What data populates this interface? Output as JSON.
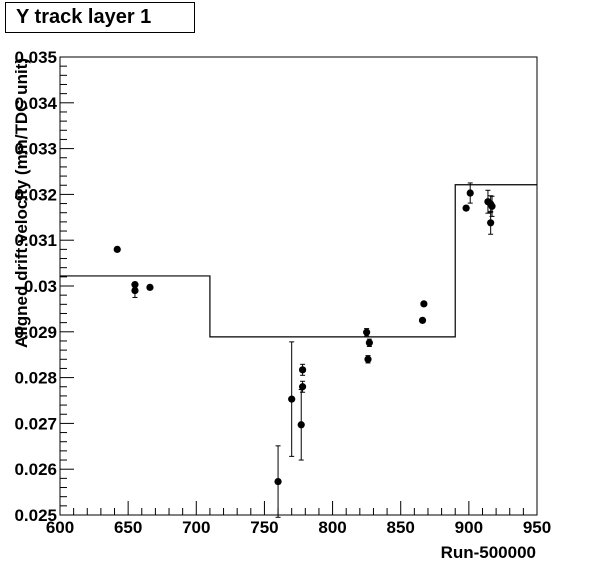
{
  "chart_data": {
    "type": "scatter",
    "title": "Y track layer 1",
    "xlabel": "Run-500000",
    "ylabel": "Aligned drift velocity (mm/TDC unit)",
    "xlim": [
      600,
      950
    ],
    "ylim": [
      0.025,
      0.035
    ],
    "x_ticks": [
      "600",
      "650",
      "700",
      "750",
      "800",
      "850",
      "900",
      "950"
    ],
    "y_ticks": [
      "0.025",
      "0.026",
      "0.027",
      "0.028",
      "0.029",
      "0.03",
      "0.031",
      "0.032",
      "0.033",
      "0.034",
      "0.035"
    ],
    "grid": false,
    "legend": "none",
    "series": [
      {
        "points": [
          {
            "x": 642,
            "y": 0.0308,
            "err": 5e-05
          },
          {
            "x": 655,
            "y": 0.03003,
            "err": 5e-05
          },
          {
            "x": 655,
            "y": 0.0299,
            "err": 0.00015
          },
          {
            "x": 666,
            "y": 0.02997,
            "err": 5e-05
          },
          {
            "x": 760,
            "y": 0.02573,
            "err": 0.00078
          },
          {
            "x": 770,
            "y": 0.02753,
            "err": 0.00125
          },
          {
            "x": 777,
            "y": 0.02697,
            "err": 0.00077
          },
          {
            "x": 778,
            "y": 0.02817,
            "err": 0.00012
          },
          {
            "x": 778,
            "y": 0.0278,
            "err": 0.00012
          },
          {
            "x": 825,
            "y": 0.02899,
            "err": 8e-05
          },
          {
            "x": 826,
            "y": 0.0284,
            "err": 8e-05
          },
          {
            "x": 827,
            "y": 0.02876,
            "err": 8e-05
          },
          {
            "x": 866,
            "y": 0.02925,
            "err": 5e-05
          },
          {
            "x": 867,
            "y": 0.02961,
            "err": 5e-05
          },
          {
            "x": 898,
            "y": 0.0317,
            "err": 5e-05
          },
          {
            "x": 901,
            "y": 0.03203,
            "err": 0.00022
          },
          {
            "x": 914,
            "y": 0.03184,
            "err": 0.00025
          },
          {
            "x": 916,
            "y": 0.03138,
            "err": 0.00025
          },
          {
            "x": 916,
            "y": 0.03179,
            "err": 0.00018
          },
          {
            "x": 917,
            "y": 0.03174,
            "err": 0.00022
          }
        ]
      }
    ],
    "step_line": [
      {
        "x0": 600,
        "x1": 710,
        "y": 0.03022
      },
      {
        "x0": 710,
        "x1": 890,
        "y": 0.02889
      },
      {
        "x0": 890,
        "x1": 950,
        "y": 0.03221
      }
    ]
  }
}
